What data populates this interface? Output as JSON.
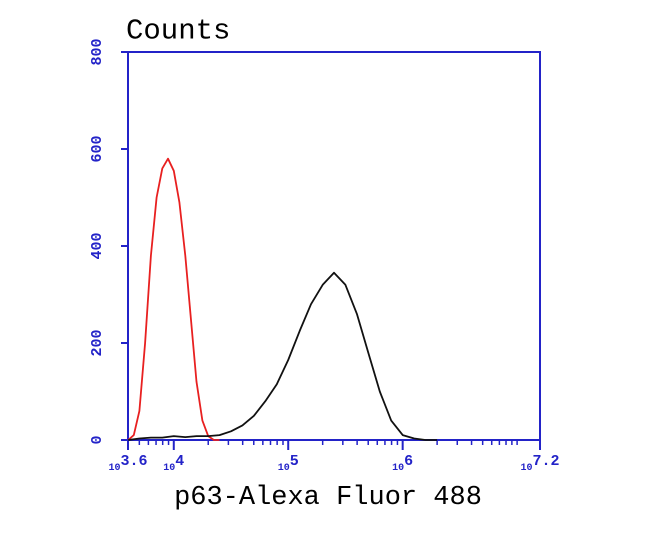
{
  "chart_data": {
    "type": "line",
    "y_title": "Counts",
    "x_title": "p63-Alexa Fluor 488",
    "x_scale": "log",
    "xlim": [
      3981.07,
      15848931.92
    ],
    "ylim": [
      0,
      800
    ],
    "xticks": [
      {
        "value": 3981.07,
        "label": "10",
        "exponent": "3.6"
      },
      {
        "value": 10000,
        "label": "10",
        "exponent": "4"
      },
      {
        "value": 100000,
        "label": "10",
        "exponent": "5"
      },
      {
        "value": 1000000,
        "label": "10",
        "exponent": "6"
      },
      {
        "value": 15848931.92,
        "label": "10",
        "exponent": "7.2"
      }
    ],
    "minor_xticks": [
      5000,
      6000,
      7000,
      8000,
      9000,
      20000,
      30000,
      40000,
      50000,
      60000,
      70000,
      80000,
      90000,
      200000,
      300000,
      400000,
      500000,
      600000,
      700000,
      800000,
      900000,
      2000000,
      3000000,
      4000000,
      5000000,
      6000000,
      7000000,
      8000000,
      9000000,
      10000000
    ],
    "yticks": [
      0,
      200,
      400,
      600,
      800
    ],
    "axis_color": "#2323c8",
    "series": [
      {
        "color": "#e82020",
        "x": [
          4000,
          4470,
          5010,
          5620,
          6310,
          7080,
          7940,
          8910,
          10000,
          11200,
          12600,
          14100,
          15800,
          17800,
          20000,
          22400,
          25100
        ],
        "values": [
          0,
          10,
          60,
          200,
          380,
          500,
          560,
          580,
          555,
          490,
          380,
          250,
          120,
          40,
          8,
          0,
          0
        ]
      },
      {
        "color": "#111111",
        "x": [
          4000,
          5010,
          6310,
          7940,
          10000,
          12600,
          15800,
          20000,
          25100,
          31600,
          39800,
          50100,
          63100,
          79400,
          100000,
          126000,
          158000,
          200000,
          251000,
          316000,
          398000,
          501000,
          631000,
          794000,
          1000000,
          1260000,
          1580000,
          2000000
        ],
        "values": [
          0,
          3,
          5,
          5,
          8,
          6,
          8,
          8,
          10,
          18,
          30,
          50,
          80,
          115,
          165,
          225,
          280,
          320,
          345,
          320,
          260,
          180,
          100,
          40,
          10,
          3,
          0,
          0
        ]
      }
    ]
  }
}
